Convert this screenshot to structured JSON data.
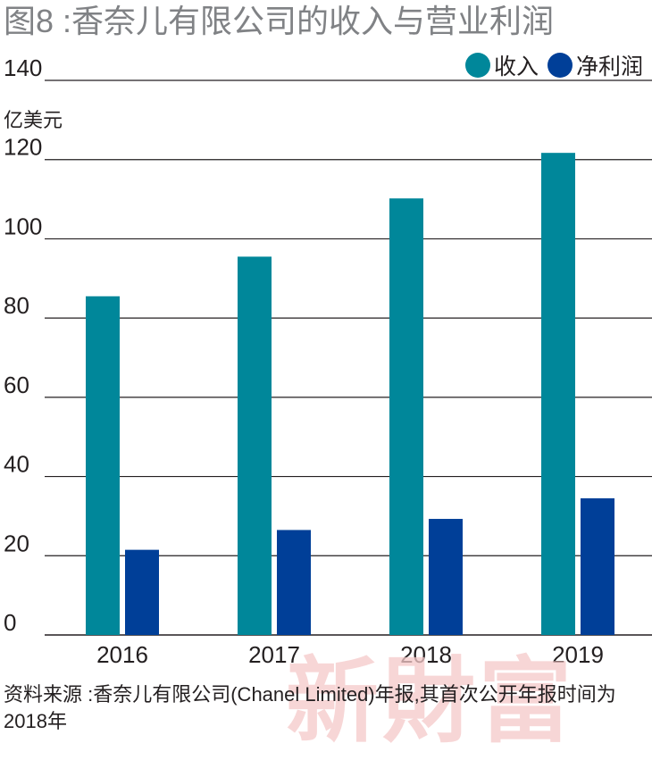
{
  "title": "图8 :香奈儿有限公司的收入与营业利润",
  "unit_label": "亿美元",
  "source_note": "资料来源 :香奈儿有限公司(Chanel Limited)年报,其首次公开年报时间为2018年",
  "watermark": "新財富",
  "colors": {
    "revenue": "#00879a",
    "net_profit": "#003f98",
    "grid": "#231f20"
  },
  "chart_data": {
    "type": "bar",
    "title": "图8 :香奈儿有限公司的收入与营业利润",
    "categories": [
      "2016",
      "2017",
      "2018",
      "2019"
    ],
    "series": [
      {
        "name": "收入",
        "values": [
          85.5,
          95.5,
          110.2,
          121.7
        ]
      },
      {
        "name": "净利润",
        "values": [
          21.5,
          26.5,
          29.3,
          34.5
        ]
      }
    ],
    "ylim": [
      0,
      140
    ],
    "yticks": [
      0,
      20,
      40,
      60,
      80,
      100,
      120,
      140
    ],
    "ylabel": "亿美元",
    "xlabel": "",
    "legend_position": "top-right",
    "grid": true
  }
}
